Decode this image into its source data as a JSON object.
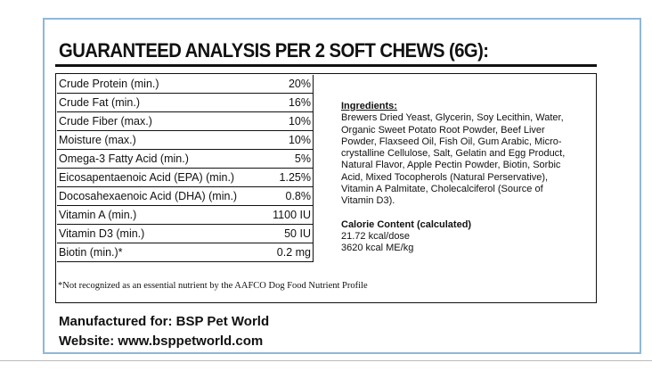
{
  "title": "GUARANTEED ANALYSIS PER 2 SOFT CHEWS (6G):",
  "table": {
    "rows": [
      [
        "Crude Protein (min.)",
        "20%"
      ],
      [
        "Crude Fat (min.)",
        "16%"
      ],
      [
        "Crude Fiber (max.)",
        "10%"
      ],
      [
        "Moisture (max.)",
        "10%"
      ],
      [
        "Omega-3 Fatty Acid (min.)",
        "5%"
      ],
      [
        "Eicosapentaenoic Acid (EPA) (min.)",
        "1.25%"
      ],
      [
        "Docosahexaenoic Acid (DHA) (min.)",
        "0.8%"
      ],
      [
        "Vitamin A (min.)",
        "1100 IU"
      ],
      [
        "Vitamin D3 (min.)",
        "50 IU"
      ],
      [
        "Biotin (min.)*",
        "0.2 mg"
      ]
    ]
  },
  "ingredients": {
    "heading": "Ingredients:",
    "lines": [
      "Brewers Dried Yeast, Glycerin, Soy Lecithin, Water,",
      "Organic Sweet Potato Root Powder, Beef Liver",
      "Powder, Flaxseed Oil, Fish Oil,  Gum Arabic, Micro-",
      "crystalline Cellulose, Salt, Gelatin and Egg Product,",
      "Natural Flavor, Apple Pectin Powder, Biotin, Sorbic",
      "Acid, Mixed Tocopherols (Natural Perservative),",
      "Vitamin A Palmitate, Cholecalciferol (Source of",
      "Vitamin D3)."
    ]
  },
  "calorie": {
    "heading": "Calorie Content (calculated)",
    "lines": [
      "21.72 kcal/dose",
      "3620 kcal ME/kg"
    ]
  },
  "footnote": "*Not recognized as an essential nutrient by the AAFCO Dog Food Nutrient Profile",
  "footer": [
    "Manufactured for: BSP Pet World",
    "Website: www.bsppetworld.com"
  ]
}
